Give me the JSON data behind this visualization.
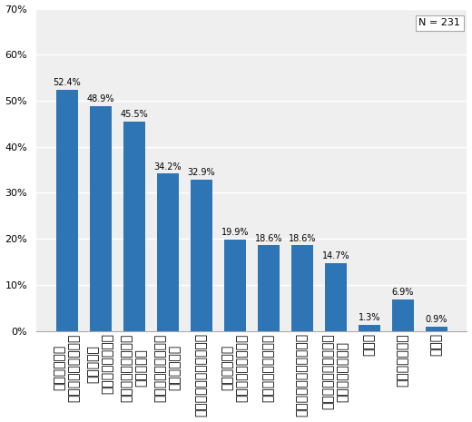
{
  "categories": [
    "投資ができる\n専門知識がなくても",
    "受け取れる\n定期的に分配金が",
    "比較的高い利回りが\n期待できる",
    "少額でも株式投資の\n面白味がある",
    "購入手続きが簡単である",
    "応じて選べる\n種類が豊富で目的に",
    "積立て投資ができる",
    "海外投資が手軽にできる",
    "複利に回る商品がある\n分配金が自動的に",
    "その他",
    "よくわからない",
    "無回答"
  ],
  "values": [
    52.4,
    48.9,
    45.5,
    34.2,
    32.9,
    19.9,
    18.6,
    18.6,
    14.7,
    1.3,
    6.9,
    0.9
  ],
  "bar_color": "#2e75b6",
  "ylim": [
    0,
    70
  ],
  "yticks": [
    0,
    10,
    20,
    30,
    40,
    50,
    60,
    70
  ],
  "n_label": "N = 231",
  "background_color": "#ffffff",
  "plot_bg_color": "#efefef"
}
